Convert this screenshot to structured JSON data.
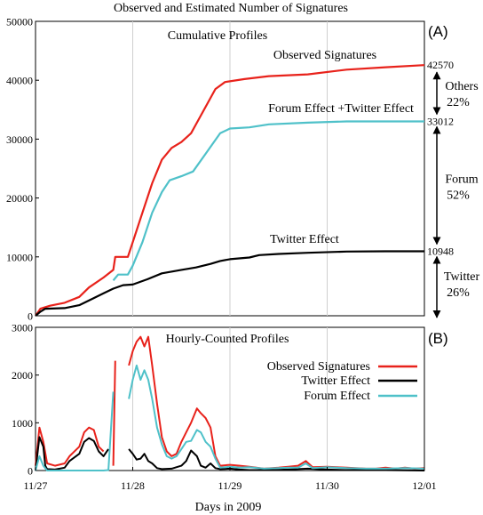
{
  "title": "Observed and Estimated Number of Signatures",
  "xlabel": "Days in 2009",
  "x_tick_labels": [
    "11/27",
    "11/28",
    "11/29",
    "11/30",
    "12/01"
  ],
  "colors": {
    "observed": "#e8221b",
    "twitter": "#000000",
    "forum": "#4fc1c9"
  },
  "chart_data": [
    {
      "type": "line",
      "panel_label": "(A)",
      "subtitle": "Cumulative Profiles",
      "ylim": [
        0,
        50000
      ],
      "y_tick_labels": [
        "0",
        "10000",
        "20000",
        "30000",
        "40000",
        "50000"
      ],
      "xlim": [
        0,
        4
      ],
      "grid": true,
      "series": [
        {
          "name": "Observed Signatures",
          "key": "observed",
          "points": [
            [
              0,
              0
            ],
            [
              0.05,
              1200
            ],
            [
              0.15,
              1700
            ],
            [
              0.3,
              2200
            ],
            [
              0.45,
              3200
            ],
            [
              0.55,
              4800
            ],
            [
              0.7,
              6500
            ],
            [
              0.8,
              7800
            ],
            [
              0.82,
              10000
            ],
            [
              0.95,
              10000
            ],
            [
              1.0,
              12500
            ],
            [
              1.1,
              17500
            ],
            [
              1.2,
              22500
            ],
            [
              1.3,
              26500
            ],
            [
              1.4,
              28500
            ],
            [
              1.5,
              29500
            ],
            [
              1.6,
              31000
            ],
            [
              1.7,
              34000
            ],
            [
              1.85,
              38500
            ],
            [
              1.95,
              39700
            ],
            [
              2.15,
              40200
            ],
            [
              2.4,
              40700
            ],
            [
              2.8,
              41000
            ],
            [
              3.2,
              41800
            ],
            [
              3.6,
              42200
            ],
            [
              4.0,
              42570
            ]
          ]
        },
        {
          "name": "Forum Effect +Twitter Effect",
          "key": "forum",
          "points": [
            [
              0.8,
              6000
            ],
            [
              0.85,
              7000
            ],
            [
              0.95,
              7000
            ],
            [
              1.0,
              8500
            ],
            [
              1.1,
              12500
            ],
            [
              1.2,
              17500
            ],
            [
              1.3,
              21000
            ],
            [
              1.38,
              23000
            ],
            [
              1.5,
              23700
            ],
            [
              1.62,
              24500
            ],
            [
              1.75,
              27500
            ],
            [
              1.9,
              31000
            ],
            [
              2.0,
              31800
            ],
            [
              2.2,
              32000
            ],
            [
              2.4,
              32500
            ],
            [
              2.8,
              32800
            ],
            [
              3.2,
              33000
            ],
            [
              3.6,
              33000
            ],
            [
              4.0,
              33012
            ]
          ]
        },
        {
          "name": "Twitter Effect",
          "key": "twitter",
          "points": [
            [
              0,
              0
            ],
            [
              0.05,
              700
            ],
            [
              0.1,
              1200
            ],
            [
              0.3,
              1300
            ],
            [
              0.45,
              1800
            ],
            [
              0.6,
              3000
            ],
            [
              0.7,
              3800
            ],
            [
              0.8,
              4600
            ],
            [
              0.9,
              5200
            ],
            [
              1.0,
              5300
            ],
            [
              1.15,
              6200
            ],
            [
              1.3,
              7200
            ],
            [
              1.5,
              7800
            ],
            [
              1.65,
              8200
            ],
            [
              1.8,
              8800
            ],
            [
              1.9,
              9300
            ],
            [
              2.0,
              9600
            ],
            [
              2.2,
              9900
            ],
            [
              2.3,
              10300
            ],
            [
              2.5,
              10500
            ],
            [
              2.8,
              10700
            ],
            [
              3.2,
              10900
            ],
            [
              3.6,
              10950
            ],
            [
              4.0,
              10948
            ]
          ]
        }
      ],
      "annotations": [
        {
          "value": "42570",
          "y": 42570
        },
        {
          "value": "33012",
          "y": 33012
        },
        {
          "value": "10948",
          "y": 10948
        }
      ],
      "brackets": [
        {
          "label": "Others",
          "pct": "22%",
          "from": 42570,
          "to": 33012
        },
        {
          "label": "Forum",
          "pct": "52%",
          "from": 33012,
          "to": 10948
        },
        {
          "label": "Twitter",
          "pct": "26%",
          "from": 10948,
          "to": 0
        }
      ]
    },
    {
      "type": "line",
      "panel_label": "(B)",
      "subtitle": "Hourly-Counted Profiles",
      "ylim": [
        0,
        3000
      ],
      "y_tick_labels": [
        "0",
        "1000",
        "2000",
        "3000"
      ],
      "xlim": [
        0,
        4
      ],
      "grid": true,
      "legend_position": "right",
      "series": [
        {
          "name": "Observed Signatures",
          "key": "observed",
          "segments": [
            [
              [
                0,
                100
              ],
              [
                0.04,
                900
              ],
              [
                0.08,
                600
              ],
              [
                0.12,
                150
              ],
              [
                0.2,
                100
              ],
              [
                0.3,
                150
              ],
              [
                0.35,
                300
              ],
              [
                0.45,
                500
              ],
              [
                0.5,
                800
              ],
              [
                0.55,
                900
              ],
              [
                0.6,
                850
              ],
              [
                0.65,
                500
              ],
              [
                0.7,
                400
              ]
            ],
            [
              [
                0.8,
                100
              ],
              [
                0.82,
                2300
              ]
            ],
            [
              [
                0.96,
                2200
              ],
              [
                1.0,
                2500
              ],
              [
                1.04,
                2700
              ],
              [
                1.08,
                2800
              ],
              [
                1.12,
                2600
              ],
              [
                1.16,
                2800
              ],
              [
                1.2,
                2200
              ],
              [
                1.25,
                1400
              ],
              [
                1.3,
                700
              ],
              [
                1.35,
                400
              ],
              [
                1.4,
                300
              ],
              [
                1.45,
                350
              ],
              [
                1.5,
                600
              ],
              [
                1.55,
                800
              ],
              [
                1.6,
                1000
              ],
              [
                1.66,
                1300
              ],
              [
                1.7,
                1200
              ],
              [
                1.75,
                1100
              ],
              [
                1.8,
                900
              ],
              [
                1.85,
                300
              ],
              [
                1.9,
                100
              ],
              [
                2.0,
                120
              ],
              [
                2.1,
                100
              ],
              [
                2.2,
                80
              ],
              [
                2.35,
                40
              ],
              [
                2.5,
                60
              ],
              [
                2.6,
                80
              ],
              [
                2.7,
                100
              ],
              [
                2.78,
                200
              ],
              [
                2.85,
                70
              ],
              [
                3.0,
                80
              ],
              [
                3.2,
                60
              ],
              [
                3.4,
                40
              ],
              [
                3.5,
                40
              ],
              [
                3.6,
                60
              ],
              [
                3.7,
                40
              ],
              [
                3.8,
                60
              ],
              [
                3.9,
                40
              ],
              [
                4.0,
                50
              ]
            ]
          ]
        },
        {
          "name": "Twitter Effect",
          "key": "twitter",
          "segments": [
            [
              [
                0,
                0
              ],
              [
                0.04,
                700
              ],
              [
                0.08,
                500
              ],
              [
                0.1,
                100
              ],
              [
                0.12,
                30
              ],
              [
                0.2,
                20
              ],
              [
                0.3,
                60
              ],
              [
                0.35,
                200
              ],
              [
                0.45,
                350
              ],
              [
                0.5,
                600
              ],
              [
                0.55,
                680
              ],
              [
                0.6,
                620
              ],
              [
                0.65,
                400
              ],
              [
                0.7,
                300
              ],
              [
                0.75,
                450
              ]
            ],
            [
              [
                0.96,
                450
              ],
              [
                1.0,
                350
              ],
              [
                1.04,
                230
              ],
              [
                1.08,
                250
              ],
              [
                1.12,
                350
              ],
              [
                1.16,
                200
              ],
              [
                1.2,
                150
              ],
              [
                1.25,
                50
              ],
              [
                1.3,
                30
              ],
              [
                1.4,
                40
              ],
              [
                1.5,
                100
              ],
              [
                1.55,
                200
              ],
              [
                1.6,
                420
              ],
              [
                1.66,
                300
              ],
              [
                1.7,
                100
              ],
              [
                1.75,
                60
              ],
              [
                1.8,
                150
              ],
              [
                1.85,
                50
              ],
              [
                1.9,
                30
              ],
              [
                2.0,
                40
              ],
              [
                2.1,
                20
              ],
              [
                2.2,
                10
              ],
              [
                2.4,
                10
              ],
              [
                2.6,
                20
              ],
              [
                2.8,
                40
              ],
              [
                3.0,
                20
              ],
              [
                3.2,
                10
              ],
              [
                3.6,
                10
              ],
              [
                4.0,
                0
              ]
            ]
          ]
        },
        {
          "name": "Forum Effect",
          "key": "forum",
          "segments": [
            [
              [
                0,
                0
              ],
              [
                0.04,
                300
              ],
              [
                0.08,
                100
              ],
              [
                0.12,
                0
              ],
              [
                0.3,
                0
              ],
              [
                0.5,
                0
              ],
              [
                0.7,
                0
              ],
              [
                0.75,
                10
              ],
              [
                0.8,
                1650
              ]
            ],
            [
              [
                0.96,
                1500
              ],
              [
                1.0,
                1900
              ],
              [
                1.04,
                2200
              ],
              [
                1.08,
                1900
              ],
              [
                1.12,
                2100
              ],
              [
                1.16,
                1900
              ],
              [
                1.2,
                1500
              ],
              [
                1.25,
                900
              ],
              [
                1.3,
                550
              ],
              [
                1.35,
                300
              ],
              [
                1.4,
                250
              ],
              [
                1.45,
                300
              ],
              [
                1.5,
                450
              ],
              [
                1.55,
                600
              ],
              [
                1.6,
                620
              ],
              [
                1.66,
                850
              ],
              [
                1.7,
                800
              ],
              [
                1.75,
                600
              ],
              [
                1.8,
                500
              ],
              [
                1.85,
                250
              ],
              [
                1.9,
                60
              ],
              [
                2.0,
                80
              ],
              [
                2.1,
                60
              ],
              [
                2.2,
                70
              ],
              [
                2.35,
                40
              ],
              [
                2.5,
                50
              ],
              [
                2.6,
                60
              ],
              [
                2.7,
                60
              ],
              [
                2.78,
                150
              ],
              [
                2.85,
                50
              ],
              [
                3.0,
                70
              ],
              [
                3.2,
                50
              ],
              [
                3.4,
                40
              ],
              [
                3.6,
                40
              ],
              [
                3.8,
                50
              ],
              [
                4.0,
                40
              ]
            ]
          ]
        }
      ]
    }
  ]
}
